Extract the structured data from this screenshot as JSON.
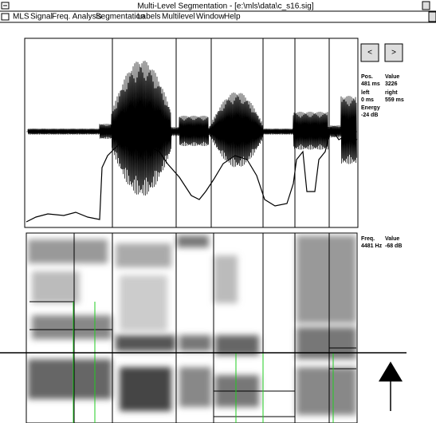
{
  "window": {
    "title": "Multi-Level Segmentation - [e:\\mls\\data\\c_s16.sig]"
  },
  "menu": [
    "MLS",
    "Signal",
    "Freq. Analysis",
    "Segmentation",
    "Labels",
    "Multilevel",
    "Window",
    "Help"
  ],
  "nav_buttons": [
    "<",
    ">"
  ],
  "signal_info": {
    "pos_label": "Pos.",
    "value_label": "Value",
    "pos": "481 ms",
    "value": "3226",
    "left_label": "left",
    "right_label": "right",
    "left": "0 ms",
    "right": "559 ms",
    "energy_label": "Energy",
    "energy": "-24 dB"
  },
  "spectrum_info": {
    "freq_label": "Freq.",
    "value_label": "Value",
    "freq": "4481 Hz",
    "value": "-68 dB"
  }
}
